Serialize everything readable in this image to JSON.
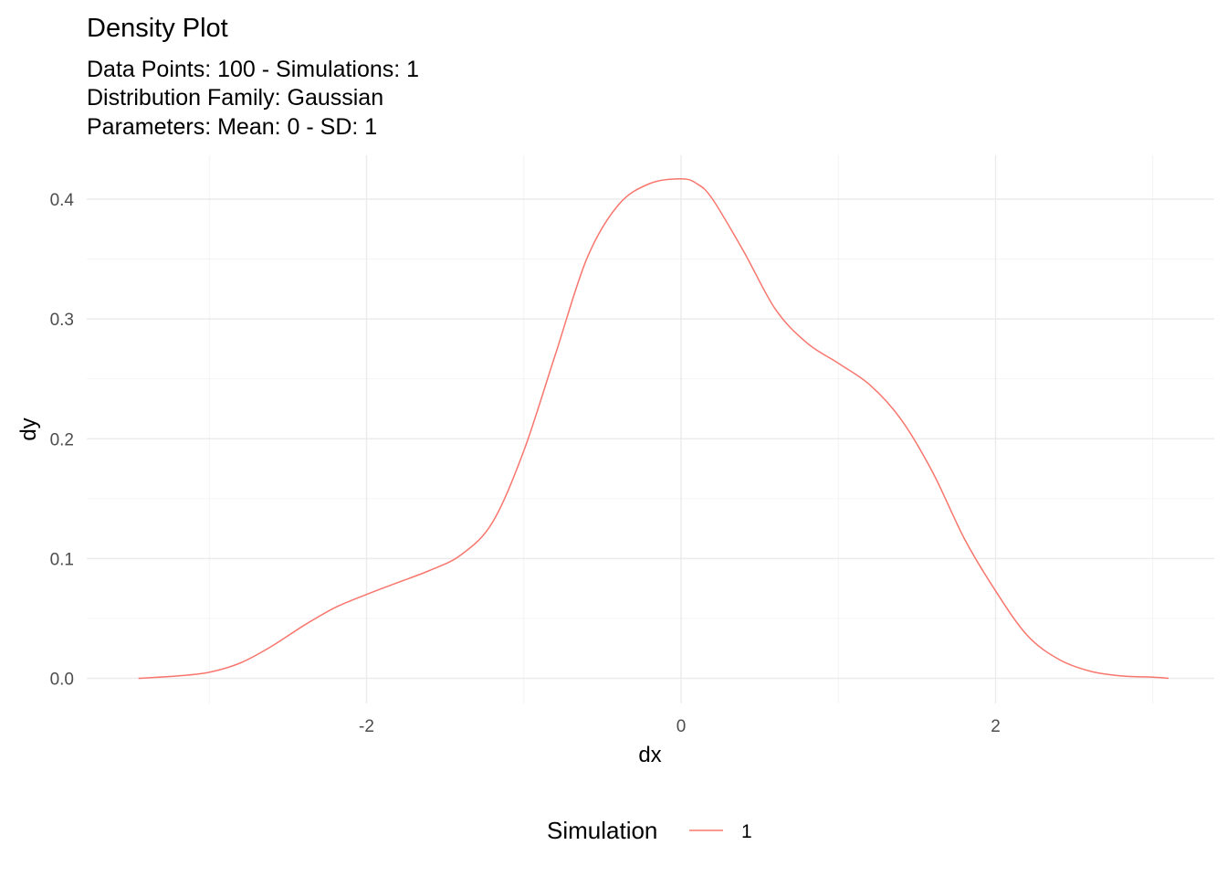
{
  "chart_data": {
    "type": "line",
    "title": "Density Plot",
    "subtitle_lines": [
      "Data Points: 100 - Simulations: 1",
      "Distribution Family: Gaussian",
      "Parameters: Mean: 0 - SD: 1"
    ],
    "xlabel": "dx",
    "ylabel": "dy",
    "xlim": [
      -3.45,
      3.1
    ],
    "ylim": [
      0,
      0.43
    ],
    "x_ticks": [
      -2,
      0,
      2
    ],
    "x_minor_ticks": [
      -3,
      -1,
      1,
      3
    ],
    "y_ticks": [
      0.0,
      0.1,
      0.2,
      0.3,
      0.4
    ],
    "y_tick_labels": [
      "0.0",
      "0.1",
      "0.2",
      "0.3",
      "0.4"
    ],
    "y_minor_ticks": [
      0.05,
      0.15,
      0.25,
      0.35
    ],
    "grid": true,
    "legend": {
      "title": "Simulation",
      "position": "bottom"
    },
    "series": [
      {
        "name": "1",
        "color": "#F8766D",
        "x": [
          -3.45,
          -3.2,
          -3.0,
          -2.8,
          -2.6,
          -2.4,
          -2.2,
          -2.0,
          -1.8,
          -1.6,
          -1.4,
          -1.2,
          -1.0,
          -0.8,
          -0.6,
          -0.4,
          -0.2,
          0.0,
          0.1,
          0.2,
          0.4,
          0.6,
          0.8,
          1.0,
          1.2,
          1.4,
          1.6,
          1.8,
          2.0,
          2.2,
          2.4,
          2.6,
          2.8,
          3.0,
          3.1
        ],
        "y": [
          0.0,
          0.002,
          0.005,
          0.013,
          0.027,
          0.044,
          0.059,
          0.07,
          0.08,
          0.09,
          0.103,
          0.13,
          0.19,
          0.27,
          0.35,
          0.395,
          0.413,
          0.417,
          0.413,
          0.4,
          0.356,
          0.308,
          0.28,
          0.263,
          0.245,
          0.216,
          0.172,
          0.117,
          0.073,
          0.036,
          0.016,
          0.006,
          0.002,
          0.001,
          0.0
        ]
      }
    ]
  }
}
